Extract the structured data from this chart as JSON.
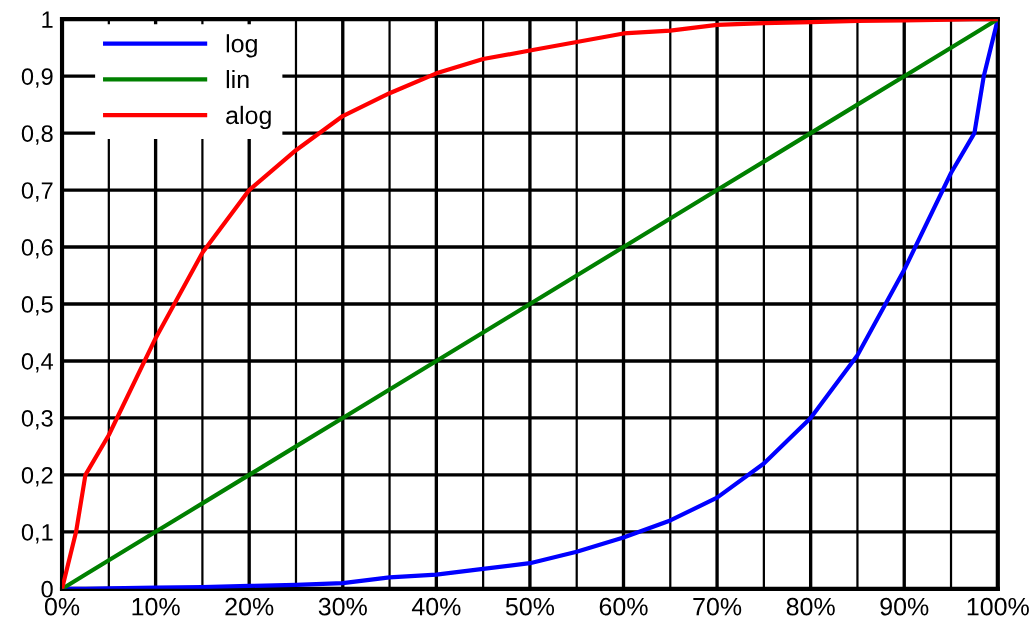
{
  "chart_data": {
    "type": "line",
    "x": [
      0,
      1.5,
      2.5,
      5,
      10,
      15,
      20,
      25,
      30,
      35,
      40,
      45,
      50,
      55,
      60,
      65,
      70,
      75,
      80,
      85,
      90,
      95,
      97.5,
      98.5,
      100
    ],
    "series": [
      {
        "name": "log",
        "color": "#0000ff",
        "values": [
          0,
          0,
          0,
          0.001,
          0.002,
          0.003,
          0.005,
          0.007,
          0.01,
          0.02,
          0.025,
          0.035,
          0.045,
          0.065,
          0.09,
          0.12,
          0.16,
          0.22,
          0.3,
          0.41,
          0.56,
          0.73,
          0.8,
          0.9,
          1
        ]
      },
      {
        "name": "lin",
        "color": "#008000",
        "values": [
          0,
          0.015,
          0.025,
          0.05,
          0.1,
          0.15,
          0.2,
          0.25,
          0.3,
          0.35,
          0.4,
          0.45,
          0.5,
          0.55,
          0.6,
          0.65,
          0.7,
          0.75,
          0.8,
          0.85,
          0.9,
          0.95,
          0.975,
          0.985,
          1
        ]
      },
      {
        "name": "alog",
        "color": "#ff0000",
        "values": [
          0,
          0.1,
          0.2,
          0.27,
          0.44,
          0.59,
          0.7,
          0.77,
          0.83,
          0.87,
          0.905,
          0.93,
          0.945,
          0.96,
          0.975,
          0.98,
          0.99,
          0.993,
          0.995,
          0.997,
          0.998,
          0.999,
          1,
          1,
          1
        ]
      }
    ],
    "xlim": [
      0,
      100
    ],
    "ylim": [
      0,
      1
    ],
    "xticks": [
      {
        "value": 0,
        "label": "0%"
      },
      {
        "value": 5,
        "label": null
      },
      {
        "value": 10,
        "label": "10%"
      },
      {
        "value": 15,
        "label": null
      },
      {
        "value": 20,
        "label": "20%"
      },
      {
        "value": 25,
        "label": null
      },
      {
        "value": 30,
        "label": "30%"
      },
      {
        "value": 35,
        "label": null
      },
      {
        "value": 40,
        "label": "40%"
      },
      {
        "value": 45,
        "label": null
      },
      {
        "value": 50,
        "label": "50%"
      },
      {
        "value": 55,
        "label": null
      },
      {
        "value": 60,
        "label": "60%"
      },
      {
        "value": 65,
        "label": null
      },
      {
        "value": 70,
        "label": "70%"
      },
      {
        "value": 75,
        "label": null
      },
      {
        "value": 80,
        "label": "80%"
      },
      {
        "value": 85,
        "label": null
      },
      {
        "value": 90,
        "label": "90%"
      },
      {
        "value": 95,
        "label": null
      },
      {
        "value": 100,
        "label": "100%"
      }
    ],
    "yticks": [
      0,
      {
        "value": 0.1,
        "label": "0,1"
      },
      {
        "value": 0.2,
        "label": "0,2"
      },
      {
        "value": 0.3,
        "label": "0,3"
      },
      {
        "value": 0.4,
        "label": "0,4"
      },
      {
        "value": 0.5,
        "label": "0,5"
      },
      {
        "value": 0.6,
        "label": "0,6"
      },
      {
        "value": 0.7,
        "label": "0,7"
      },
      {
        "value": 0.8,
        "label": "0,8"
      },
      {
        "value": 0.9,
        "label": "0,9"
      },
      1
    ],
    "grid": true,
    "legend": "top left",
    "marker": "none",
    "line_style": "solid"
  }
}
